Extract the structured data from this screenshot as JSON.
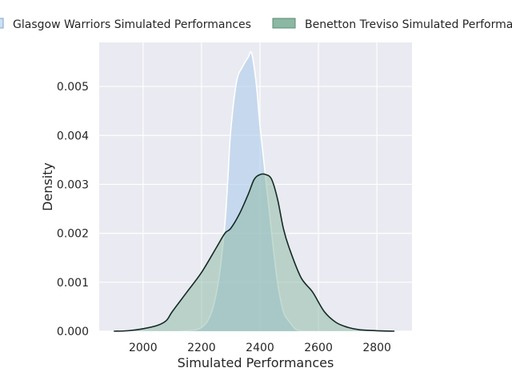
{
  "chart_data": {
    "type": "area",
    "xlabel": "Simulated Performances",
    "ylabel": "Density",
    "xlim": [
      1850,
      2920
    ],
    "ylim": [
      0,
      0.0059
    ],
    "x_ticks": [
      2000,
      2200,
      2400,
      2600,
      2800
    ],
    "y_ticks": [
      0.0,
      0.001,
      0.002,
      0.003,
      0.004,
      0.005
    ],
    "y_tick_labels": [
      "0.000",
      "0.001",
      "0.002",
      "0.003",
      "0.004",
      "0.005"
    ],
    "grid": true,
    "legend_position": "top",
    "series": [
      {
        "name": "Glasgow Warriors Simulated Performances",
        "fill": "#aecbea",
        "line": "#ffffff",
        "x": [
          2130,
          2180,
          2200,
          2220,
          2240,
          2260,
          2280,
          2290,
          2300,
          2320,
          2340,
          2360,
          2370,
          2380,
          2390,
          2400,
          2420,
          2440,
          2460,
          2480,
          2500,
          2520,
          2540,
          2560,
          2600,
          2620
        ],
        "y": [
          0.0,
          3e-05,
          8e-05,
          0.0002,
          0.0005,
          0.0011,
          0.0022,
          0.0031,
          0.0041,
          0.0051,
          0.0054,
          0.0056,
          0.0057,
          0.0054,
          0.0049,
          0.0042,
          0.0031,
          0.002,
          0.001,
          0.0004,
          0.0002,
          5e-05,
          1e-05,
          0.0,
          0.0,
          0.0
        ]
      },
      {
        "name": "Benetton Treviso Simulated Performances",
        "fill": "#8ab8a2",
        "line": "#142a22",
        "x": [
          1900,
          1950,
          2000,
          2050,
          2080,
          2100,
          2150,
          2200,
          2250,
          2280,
          2300,
          2330,
          2360,
          2380,
          2400,
          2420,
          2440,
          2460,
          2480,
          2500,
          2540,
          2580,
          2620,
          2660,
          2700,
          2740,
          2800,
          2860
        ],
        "y": [
          0.0,
          1e-05,
          5e-05,
          0.00012,
          0.00022,
          0.0004,
          0.0008,
          0.0012,
          0.0017,
          0.002,
          0.0021,
          0.0024,
          0.0028,
          0.0031,
          0.0032,
          0.0032,
          0.0031,
          0.0027,
          0.0021,
          0.0017,
          0.0011,
          0.0008,
          0.0004,
          0.00018,
          8e-05,
          3e-05,
          1e-05,
          0.0
        ]
      }
    ]
  }
}
